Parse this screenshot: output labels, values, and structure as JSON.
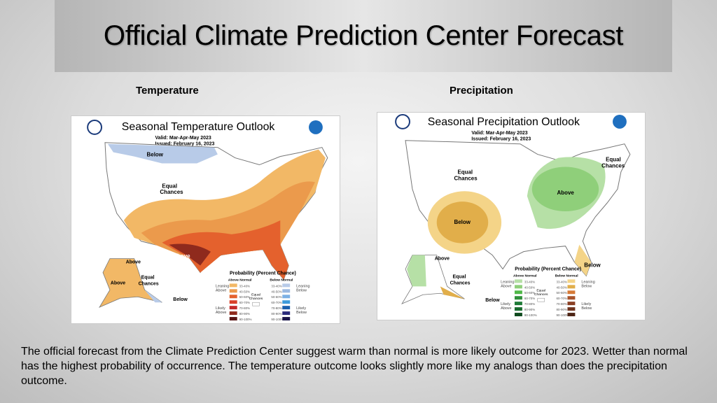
{
  "slide": {
    "title": "Official Climate Prediction Center Forecast",
    "temperature_label": "Temperature",
    "precipitation_label": "Precipitation",
    "body": "The official forecast from the Climate Prediction Center suggest  warm than normal is more likely outcome for 2023.  Wetter than normal has the highest probability of occurrence.   The temperature outcome looks slightly more like my analogs than does the precipitation outcome."
  },
  "temp_map": {
    "title": "Seasonal Temperature Outlook",
    "valid": "Valid:  Mar-Apr-May 2023",
    "issued": "Issued:  February 16, 2023",
    "regions": {
      "below": "Below",
      "equal": "Equal",
      "chances": "Chances",
      "above": "Above",
      "ak_above1": "Above",
      "ak_above2": "Above",
      "ak_equal": "Equal",
      "ak_chances": "Chances",
      "ak_below": "Below"
    },
    "legend": {
      "title": "Probability (Percent Chance)",
      "above_header": "Above Normal",
      "below_header": "Below Normal",
      "leaning_left": [
        "Leaning",
        "Above"
      ],
      "likely_left": [
        "Likely",
        "Above"
      ],
      "leaning_right": [
        "Leaning",
        "Below"
      ],
      "likely_right": [
        "Likely",
        "Below"
      ],
      "equal": [
        "Equal",
        "Chances"
      ],
      "bins": [
        "33-40%",
        "40-50%",
        "50-60%",
        "60-70%",
        "70-80%",
        "80-90%",
        "90-100%"
      ],
      "above_colors": [
        "#f2b866",
        "#eb9a4c",
        "#e4612d",
        "#d9402a",
        "#c4292a",
        "#8f2a1d",
        "#5a1414"
      ],
      "below_colors": [
        "#b8cbe8",
        "#9ab8e0",
        "#7cb0e4",
        "#3d9bdb",
        "#1a5fad",
        "#2a2a7a",
        "#1a1448"
      ]
    }
  },
  "precip_map": {
    "title": "Seasonal Precipitation Outlook",
    "valid": "Valid:  Mar-Apr-May 2023",
    "issued": "Issued:  February 16, 2023",
    "regions": {
      "equal1": "Equal",
      "chances1": "Chances",
      "equal2": "Equal",
      "chances2": "Chances",
      "below": "Below",
      "above": "Above",
      "below2": "Below",
      "ak_above": "Above",
      "ak_equal": "Equal",
      "ak_chances": "Chances",
      "ak_below": "Below"
    },
    "legend": {
      "title": "Probability (Percent Chance)",
      "above_header": "Above Normal",
      "below_header": "Below Normal",
      "leaning_left": [
        "Leaning",
        "Above"
      ],
      "likely_left": [
        "Likely",
        "Above"
      ],
      "leaning_right": [
        "Leaning",
        "Below"
      ],
      "likely_right": [
        "Likely",
        "Below"
      ],
      "equal": [
        "Equal",
        "Chances"
      ],
      "bins": [
        "33-40%",
        "40-50%",
        "50-60%",
        "60-70%",
        "70-80%",
        "80-90%",
        "90-100%"
      ],
      "above_colors": [
        "#b6e0a6",
        "#8fcf7a",
        "#4fb848",
        "#2f8f3a",
        "#1e7a36",
        "#196b2e",
        "#0f4a1e"
      ],
      "below_colors": [
        "#f4d488",
        "#e1ae4a",
        "#d67a36",
        "#a8532b",
        "#8a3f23",
        "#6f331e",
        "#4e2516"
      ]
    }
  }
}
